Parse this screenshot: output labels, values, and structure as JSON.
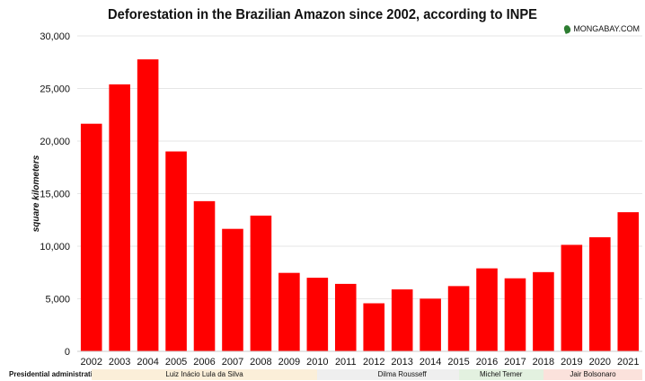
{
  "chart_data": {
    "type": "bar",
    "title": "Deforestation in the Brazilian Amazon since 2002, according to INPE",
    "source": "MONGABAY.COM",
    "ylabel": "square kilometers",
    "xlabel": "",
    "ylim": [
      0,
      30000
    ],
    "yticks": [
      0,
      5000,
      10000,
      15000,
      20000,
      25000,
      30000
    ],
    "ytick_labels": [
      "0",
      "5,000",
      "10,000",
      "15,000",
      "20,000",
      "25,000",
      "30,000"
    ],
    "categories": [
      "2002",
      "2003",
      "2004",
      "2005",
      "2006",
      "2007",
      "2008",
      "2009",
      "2010",
      "2011",
      "2012",
      "2013",
      "2014",
      "2015",
      "2016",
      "2017",
      "2018",
      "2019",
      "2020",
      "2021"
    ],
    "values": [
      21650,
      25396,
      27772,
      19014,
      14286,
      11651,
      12911,
      7464,
      7000,
      6418,
      4571,
      5891,
      5012,
      6207,
      7893,
      6947,
      7536,
      10129,
      10851,
      13235
    ],
    "bar_color": "#ff0000",
    "grid": true,
    "legend": "none"
  },
  "administrations": {
    "label": "Presidential administration:",
    "items": [
      {
        "name": "Luiz Inácio Lula da Silva",
        "from": "2003",
        "to": "2010",
        "color": "#fbefd9"
      },
      {
        "name": "Dilma Rousseff",
        "from": "2011",
        "to": "2016",
        "color": "#efefef"
      },
      {
        "name": "Michel Temer",
        "from": "2016",
        "to": "2018",
        "color": "#e3f1e0"
      },
      {
        "name": "Jair Bolsonaro",
        "from": "2019",
        "to": "2021",
        "color": "#fbe2dc"
      }
    ]
  }
}
